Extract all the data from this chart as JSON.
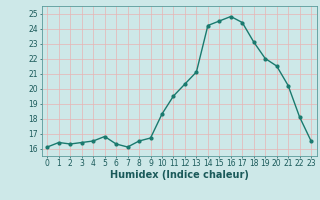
{
  "x": [
    0,
    1,
    2,
    3,
    4,
    5,
    6,
    7,
    8,
    9,
    10,
    11,
    12,
    13,
    14,
    15,
    16,
    17,
    18,
    19,
    20,
    21,
    22,
    23
  ],
  "y": [
    16.1,
    16.4,
    16.3,
    16.4,
    16.5,
    16.8,
    16.3,
    16.1,
    16.5,
    16.7,
    18.3,
    19.5,
    20.3,
    21.1,
    24.2,
    24.5,
    24.8,
    24.4,
    23.1,
    22.0,
    21.5,
    20.2,
    18.1,
    16.5
  ],
  "line_color": "#1a7a6e",
  "marker_color": "#1a7a6e",
  "bg_color": "#cde8e8",
  "grid_major_color": "#f0c8c8",
  "grid_minor_color": "#cde8e8",
  "xlabel": "Humidex (Indice chaleur)",
  "xlim": [
    -0.5,
    23.5
  ],
  "ylim": [
    15.5,
    25.5
  ],
  "yticks": [
    16,
    17,
    18,
    19,
    20,
    21,
    22,
    23,
    24,
    25
  ],
  "xticks": [
    0,
    1,
    2,
    3,
    4,
    5,
    6,
    7,
    8,
    9,
    10,
    11,
    12,
    13,
    14,
    15,
    16,
    17,
    18,
    19,
    20,
    21,
    22,
    23
  ],
  "tick_fontsize": 5.5,
  "label_fontsize": 7.0,
  "linewidth": 1.0,
  "markersize": 2.0
}
